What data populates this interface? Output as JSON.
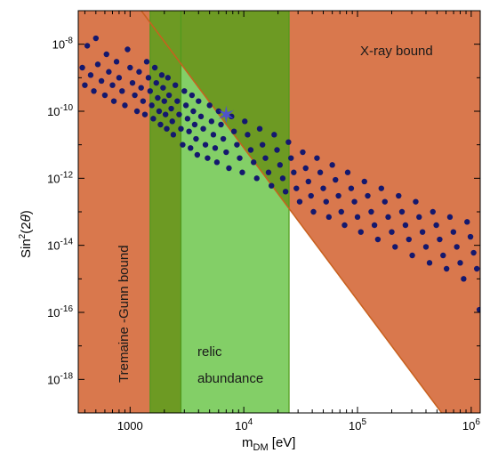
{
  "chart_data": {
    "type": "scatter",
    "title": "",
    "x_scale": "log",
    "y_scale": "log",
    "xlim": [
      350,
      1200000
    ],
    "ylim": [
      1e-19,
      1e-07
    ],
    "xlabel": {
      "main": "m",
      "sub": "DM",
      "unit": " [eV]"
    },
    "ylabel": {
      "pre": "Sin",
      "sup": "2",
      "post": "(2",
      "greek": "θ",
      "close": ")"
    },
    "x_ticks": [
      {
        "value": 1000,
        "text": "1000"
      },
      {
        "value": 10000,
        "base": "10",
        "exp": "4"
      },
      {
        "value": 100000,
        "base": "10",
        "exp": "5"
      },
      {
        "value": 1000000,
        "base": "10",
        "exp": "6"
      }
    ],
    "y_ticks": [
      {
        "value": 1e-08,
        "base": "10",
        "exp": "-8"
      },
      {
        "value": 1e-10,
        "base": "10",
        "exp": "-10"
      },
      {
        "value": 1e-12,
        "base": "10",
        "exp": "-12"
      },
      {
        "value": 1e-14,
        "base": "10",
        "exp": "-14"
      },
      {
        "value": 1e-16,
        "base": "10",
        "exp": "-16"
      },
      {
        "value": 1e-18,
        "base": "10",
        "exp": "-18"
      }
    ],
    "regions": [
      {
        "label": "Tremaine -Gunn bound",
        "color": "#d9784d",
        "x_range": [
          350,
          1500
        ],
        "orientation": "vertical"
      },
      {
        "label": "relic abundance",
        "color": "#83cf67",
        "x_range": [
          1500,
          25000
        ],
        "dark_band": [
          1500,
          2800
        ],
        "dark_color": "#6d9a23"
      },
      {
        "label": "X-ray bound",
        "color": "#d9784d",
        "boundary": [
          [
            1000,
            2.8e-07
          ],
          [
            550000,
            1e-19
          ]
        ]
      }
    ],
    "highlight_point": {
      "x": 7000,
      "y": 8e-11,
      "marker": "star",
      "color": "#4a48e6"
    },
    "point_color": "#14186e",
    "scatter_points": [
      [
        380,
        2e-09
      ],
      [
        400,
        6e-10
      ],
      [
        420,
        9e-09
      ],
      [
        450,
        1.2e-09
      ],
      [
        480,
        4e-10
      ],
      [
        500,
        1.5e-08
      ],
      [
        520,
        2.5e-09
      ],
      [
        560,
        8e-10
      ],
      [
        600,
        3e-10
      ],
      [
        620,
        5e-09
      ],
      [
        650,
        1.5e-09
      ],
      [
        700,
        6e-10
      ],
      [
        720,
        2e-10
      ],
      [
        760,
        3e-09
      ],
      [
        800,
        1e-09
      ],
      [
        850,
        4e-10
      ],
      [
        900,
        1.5e-10
      ],
      [
        950,
        7e-09
      ],
      [
        1000,
        2e-09
      ],
      [
        1050,
        7e-10
      ],
      [
        1100,
        3e-10
      ],
      [
        1150,
        1e-10
      ],
      [
        1200,
        1.5e-09
      ],
      [
        1250,
        5e-10
      ],
      [
        1300,
        2e-10
      ],
      [
        1350,
        8e-11
      ],
      [
        1400,
        3e-09
      ],
      [
        1450,
        1e-09
      ],
      [
        1500,
        4e-10
      ],
      [
        1550,
        1.5e-10
      ],
      [
        1600,
        6e-11
      ],
      [
        1650,
        2e-09
      ],
      [
        1700,
        7e-10
      ],
      [
        1750,
        2.5e-10
      ],
      [
        1800,
        1e-10
      ],
      [
        1850,
        4e-11
      ],
      [
        1900,
        1.2e-09
      ],
      [
        1950,
        5e-10
      ],
      [
        2000,
        2e-10
      ],
      [
        2050,
        8e-11
      ],
      [
        2100,
        3e-11
      ],
      [
        2150,
        1e-09
      ],
      [
        2200,
        3e-10
      ],
      [
        2300,
        1.2e-10
      ],
      [
        2350,
        5e-11
      ],
      [
        2400,
        2e-11
      ],
      [
        2500,
        6e-10
      ],
      [
        2600,
        2e-10
      ],
      [
        2700,
        8e-11
      ],
      [
        2800,
        3e-11
      ],
      [
        2900,
        1e-11
      ],
      [
        3000,
        4e-10
      ],
      [
        3100,
        1.5e-10
      ],
      [
        3200,
        6e-11
      ],
      [
        3300,
        2.5e-11
      ],
      [
        3400,
        8e-12
      ],
      [
        3500,
        3e-10
      ],
      [
        3600,
        1e-10
      ],
      [
        3700,
        4e-11
      ],
      [
        3800,
        1.5e-11
      ],
      [
        3900,
        5e-12
      ],
      [
        4000,
        2e-10
      ],
      [
        4200,
        7e-11
      ],
      [
        4400,
        3e-11
      ],
      [
        4600,
        1e-11
      ],
      [
        4800,
        4e-12
      ],
      [
        5000,
        1.5e-10
      ],
      [
        5200,
        5e-11
      ],
      [
        5400,
        2e-11
      ],
      [
        5600,
        8e-12
      ],
      [
        5800,
        3e-12
      ],
      [
        6000,
        1e-10
      ],
      [
        6300,
        4e-11
      ],
      [
        6600,
        1.5e-11
      ],
      [
        7000,
        6e-12
      ],
      [
        7400,
        2e-12
      ],
      [
        7800,
        7e-11
      ],
      [
        8200,
        2.5e-11
      ],
      [
        8700,
        1e-11
      ],
      [
        9200,
        4e-12
      ],
      [
        9700,
        1.5e-12
      ],
      [
        10200,
        5e-11
      ],
      [
        10800,
        2e-11
      ],
      [
        11500,
        7e-12
      ],
      [
        12200,
        3e-12
      ],
      [
        13000,
        1e-12
      ],
      [
        13800,
        3e-11
      ],
      [
        14600,
        1e-11
      ],
      [
        15500,
        4e-12
      ],
      [
        16500,
        1.5e-12
      ],
      [
        17500,
        6e-13
      ],
      [
        18500,
        2e-11
      ],
      [
        19600,
        7e-12
      ],
      [
        20800,
        2.5e-12
      ],
      [
        22000,
        1e-12
      ],
      [
        23300,
        4e-13
      ],
      [
        24700,
        1.2e-11
      ],
      [
        26000,
        4e-12
      ],
      [
        27500,
        1.5e-12
      ],
      [
        29000,
        5e-13
      ],
      [
        31000,
        2e-13
      ],
      [
        33000,
        6e-12
      ],
      [
        35000,
        2e-12
      ],
      [
        37000,
        8e-13
      ],
      [
        39000,
        3e-13
      ],
      [
        41000,
        1e-13
      ],
      [
        44000,
        4e-12
      ],
      [
        47000,
        1.5e-12
      ],
      [
        50000,
        5e-13
      ],
      [
        53000,
        2e-13
      ],
      [
        56000,
        7e-14
      ],
      [
        60000,
        2.5e-12
      ],
      [
        64000,
        9e-13
      ],
      [
        68000,
        3e-13
      ],
      [
        72000,
        1e-13
      ],
      [
        77000,
        4e-14
      ],
      [
        82000,
        1.5e-12
      ],
      [
        88000,
        5e-13
      ],
      [
        94000,
        2e-13
      ],
      [
        100000,
        7e-14
      ],
      [
        107000,
        2.5e-14
      ],
      [
        115000,
        8e-13
      ],
      [
        123000,
        3e-13
      ],
      [
        132000,
        1e-13
      ],
      [
        141000,
        4e-14
      ],
      [
        151000,
        1.5e-14
      ],
      [
        162000,
        5e-13
      ],
      [
        174000,
        2e-13
      ],
      [
        186000,
        7e-14
      ],
      [
        200000,
        2.5e-14
      ],
      [
        214000,
        9e-15
      ],
      [
        230000,
        3e-13
      ],
      [
        246000,
        1e-13
      ],
      [
        264000,
        4e-14
      ],
      [
        283000,
        1.5e-14
      ],
      [
        303000,
        5e-15
      ],
      [
        325000,
        2e-13
      ],
      [
        348000,
        7e-14
      ],
      [
        373000,
        2.5e-14
      ],
      [
        400000,
        9e-15
      ],
      [
        430000,
        3e-15
      ],
      [
        460000,
        1e-13
      ],
      [
        493000,
        4e-14
      ],
      [
        528000,
        1.5e-14
      ],
      [
        566000,
        5e-15
      ],
      [
        607000,
        2e-15
      ],
      [
        650000,
        7e-14
      ],
      [
        697000,
        2.5e-14
      ],
      [
        747000,
        9e-15
      ],
      [
        800000,
        3e-15
      ],
      [
        858000,
        1e-15
      ],
      [
        920000,
        5e-14
      ],
      [
        985000,
        1.8e-14
      ],
      [
        1050000,
        6e-15
      ],
      [
        1120000,
        2e-15
      ],
      [
        1180000,
        1.2e-16
      ]
    ]
  }
}
